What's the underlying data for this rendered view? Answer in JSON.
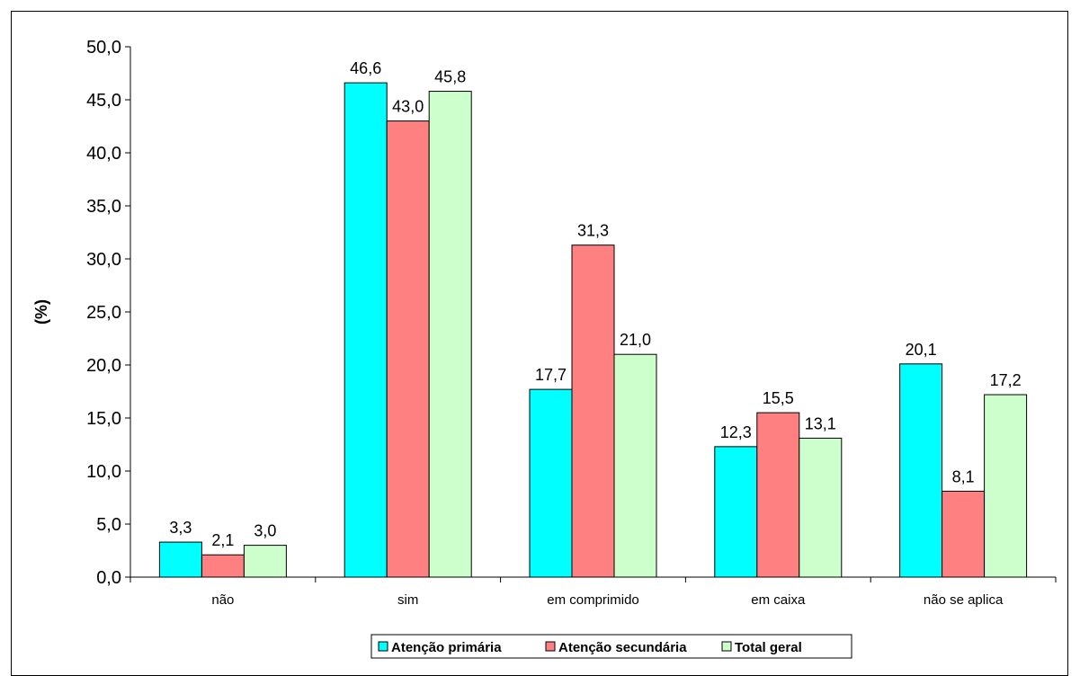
{
  "chart_data": {
    "type": "bar",
    "ylabel": "(%)",
    "ylim": [
      0,
      50
    ],
    "ytick_step": 5,
    "yticks": [
      "0,0",
      "5,0",
      "10,0",
      "15,0",
      "20,0",
      "25,0",
      "30,0",
      "35,0",
      "40,0",
      "45,0",
      "50,0"
    ],
    "categories": [
      "não",
      "sim",
      "em comprimido",
      "em caixa",
      "não se aplica"
    ],
    "series": [
      {
        "name": "Atenção primária",
        "color": "#00ffff",
        "values": [
          3.3,
          46.6,
          17.7,
          12.3,
          20.1
        ],
        "labels": [
          "3,3",
          "46,6",
          "17,7",
          "12,3",
          "20,1"
        ]
      },
      {
        "name": "Atenção secundária",
        "color": "#ff8080",
        "values": [
          2.1,
          43.0,
          31.3,
          15.5,
          8.1
        ],
        "labels": [
          "2,1",
          "43,0",
          "31,3",
          "15,5",
          "8,1"
        ]
      },
      {
        "name": "Total geral",
        "color": "#ccffcc",
        "values": [
          3.0,
          45.8,
          21.0,
          13.1,
          17.2
        ],
        "labels": [
          "3,0",
          "45,8",
          "21,0",
          "13,1",
          "17,2"
        ]
      }
    ],
    "legend_position": "bottom",
    "grid": false
  }
}
